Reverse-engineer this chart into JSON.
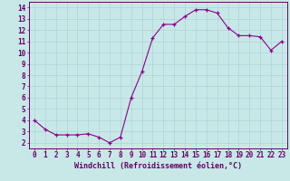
{
  "x": [
    0,
    1,
    2,
    3,
    4,
    5,
    6,
    7,
    8,
    9,
    10,
    11,
    12,
    13,
    14,
    15,
    16,
    17,
    18,
    19,
    20,
    21,
    22,
    23
  ],
  "y": [
    4.0,
    3.2,
    2.7,
    2.7,
    2.7,
    2.8,
    2.5,
    2.0,
    2.5,
    6.0,
    8.3,
    11.3,
    12.5,
    12.5,
    13.2,
    13.8,
    13.8,
    13.5,
    12.2,
    11.5,
    11.5,
    11.4,
    10.2,
    11.0
  ],
  "line_color": "#8B008B",
  "marker": "+",
  "marker_color": "#8B008B",
  "bg_color": "#c8e8e8",
  "grid_color": "#aed4d4",
  "xlabel": "Windchill (Refroidissement éolien,°C)",
  "xlabel_fontsize": 6.0,
  "ylabel_ticks": [
    2,
    3,
    4,
    5,
    6,
    7,
    8,
    9,
    10,
    11,
    12,
    13,
    14
  ],
  "xlim": [
    -0.5,
    23.5
  ],
  "ylim": [
    1.5,
    14.5
  ],
  "tick_fontsize": 5.5,
  "axis_color": "#660066"
}
